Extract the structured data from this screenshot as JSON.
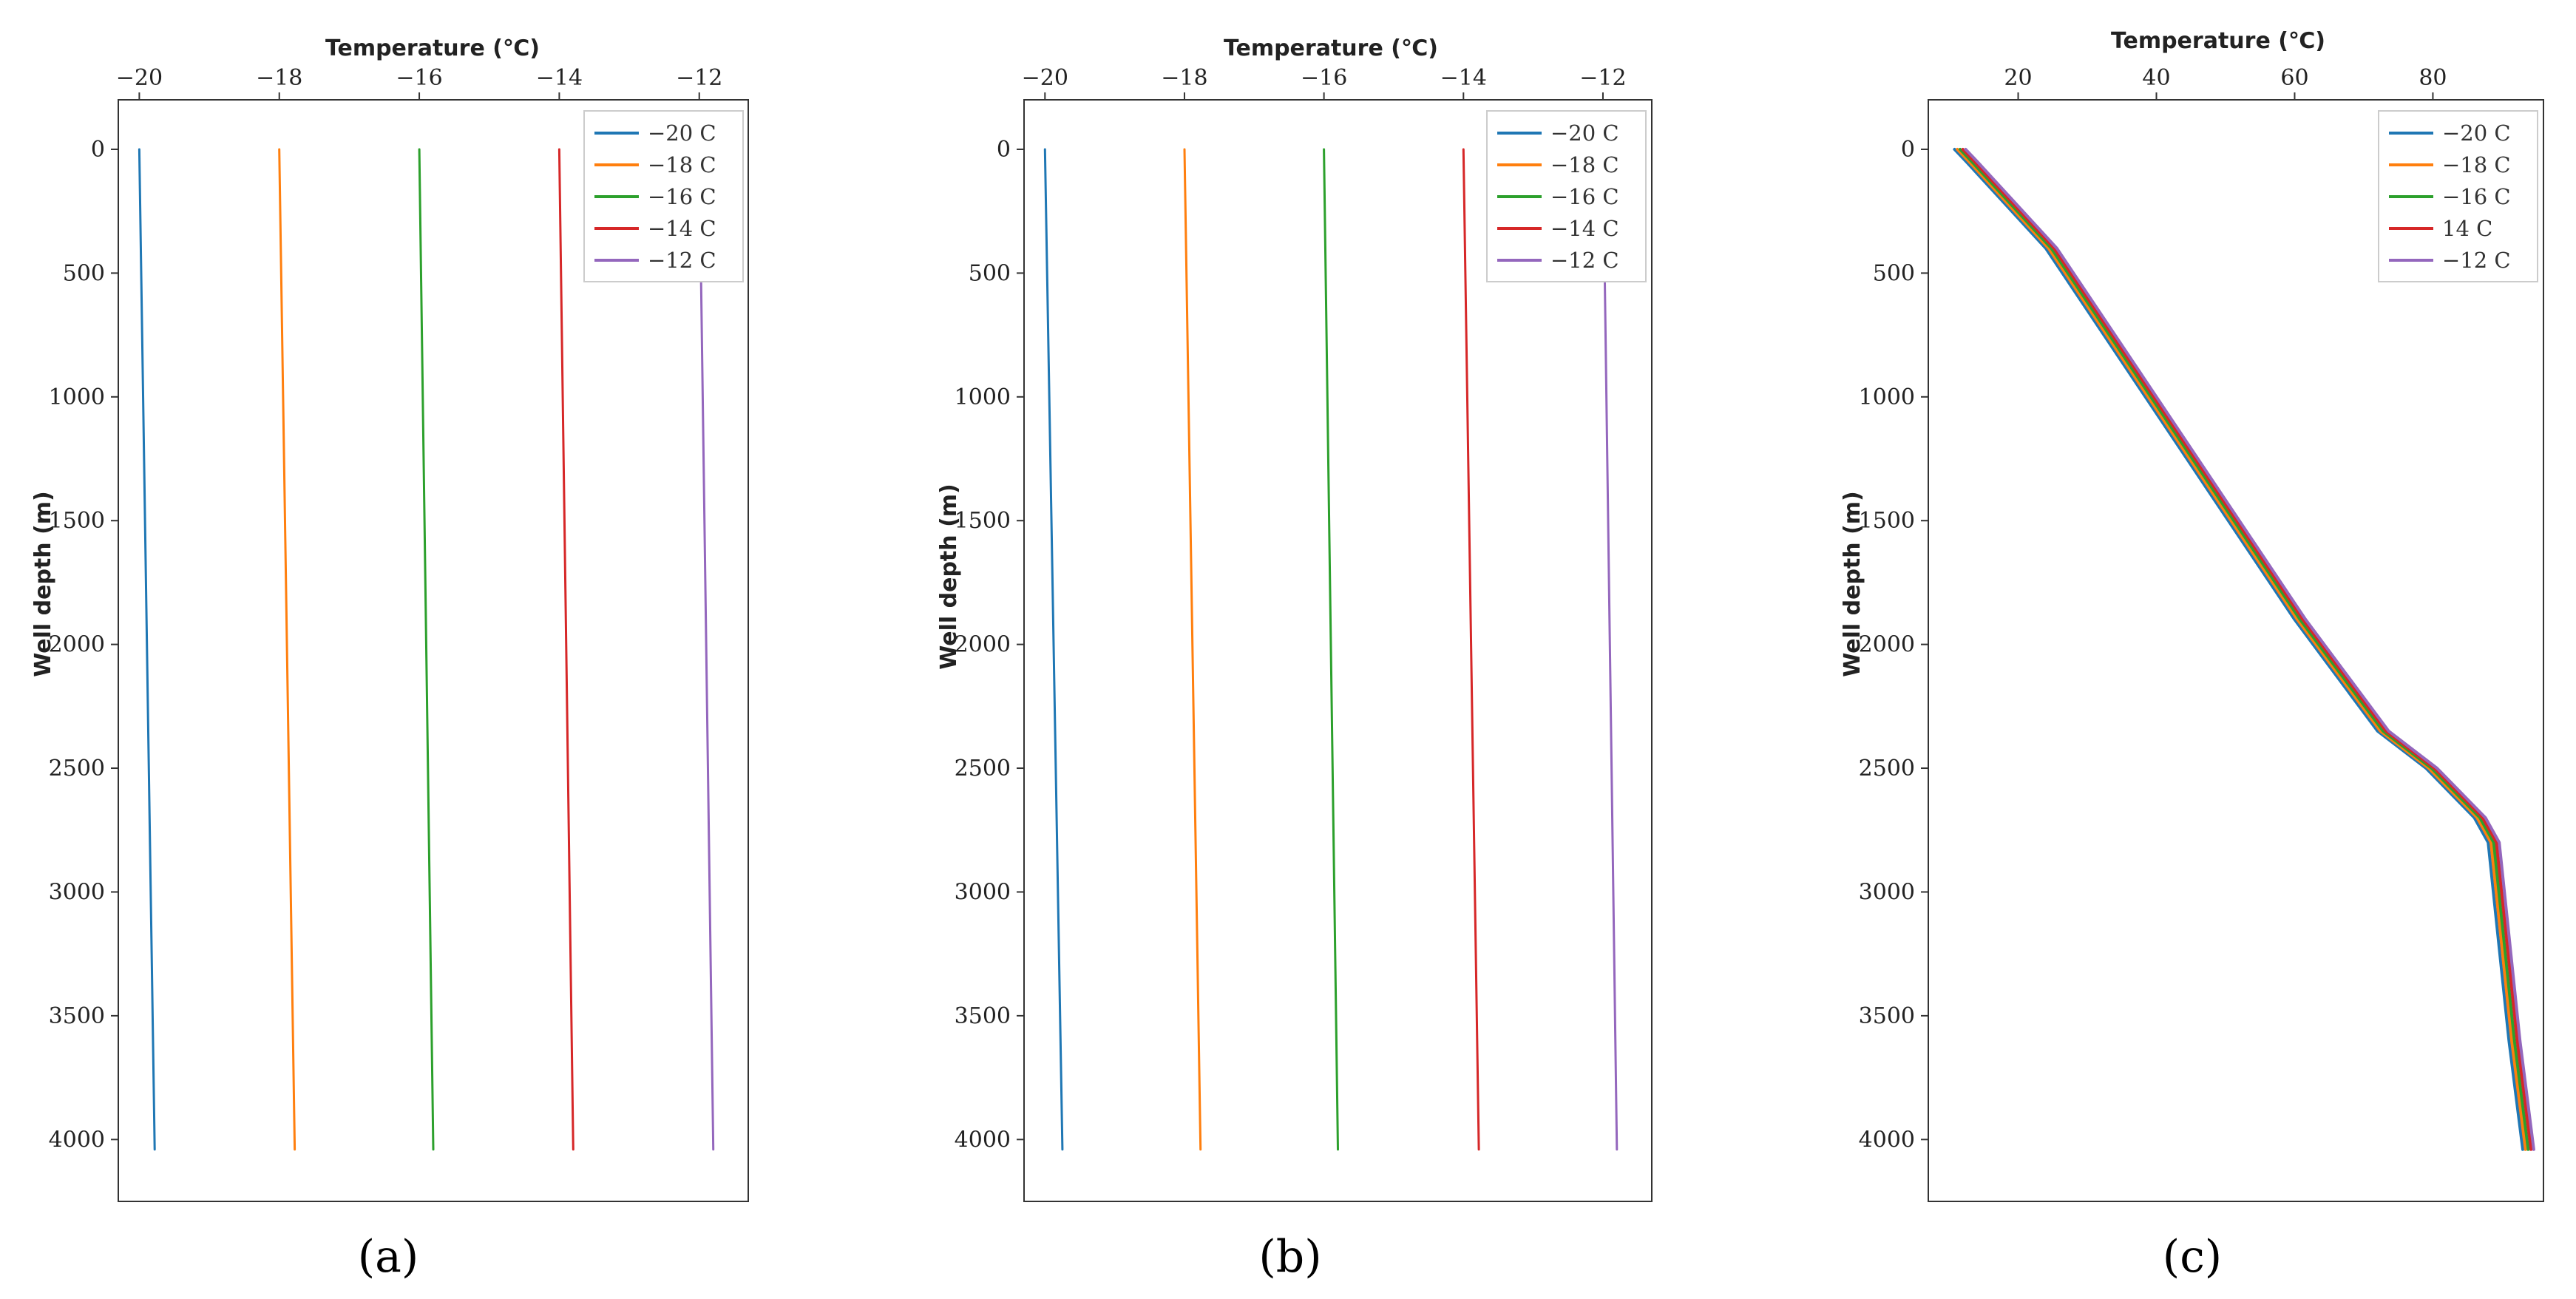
{
  "colors": [
    "#1f77b4",
    "#ff7f0e",
    "#2ca02c",
    "#d62728",
    "#9467bd"
  ],
  "chart_data": [
    {
      "type": "line",
      "caption": "(a)",
      "xlabel": "Temperature (℃)",
      "ylabel": "Well depth (m)",
      "xlim": [
        -20.3,
        -11.3
      ],
      "ylim": [
        4250,
        -200
      ],
      "xticks": [
        -20,
        -18,
        -16,
        -14,
        -12
      ],
      "xtick_labels": [
        "−20",
        "−18",
        "−16",
        "−14",
        "−12"
      ],
      "yticks": [
        0,
        500,
        1000,
        1500,
        2000,
        2500,
        3000,
        3500,
        4000
      ],
      "legend_position": "top-right",
      "series": [
        {
          "name": "−20  C",
          "points": [
            [
              -20.0,
              0
            ],
            [
              -19.78,
              4040
            ]
          ]
        },
        {
          "name": "−18  C",
          "points": [
            [
              -18.0,
              0
            ],
            [
              -17.78,
              4040
            ]
          ]
        },
        {
          "name": "−16  C",
          "points": [
            [
              -16.0,
              0
            ],
            [
              -15.8,
              4040
            ]
          ]
        },
        {
          "name": "−14  C",
          "points": [
            [
              -14.0,
              0
            ],
            [
              -13.8,
              4040
            ]
          ]
        },
        {
          "name": "−12  C",
          "points": [
            [
              -12.0,
              0
            ],
            [
              -11.8,
              4040
            ]
          ]
        }
      ]
    },
    {
      "type": "line",
      "caption": "(b)",
      "xlabel": "Temperature (℃)",
      "ylabel": "Well depth (m)",
      "xlim": [
        -20.3,
        -11.3
      ],
      "ylim": [
        4250,
        -200
      ],
      "xticks": [
        -20,
        -18,
        -16,
        -14,
        -12
      ],
      "xtick_labels": [
        "−20",
        "−18",
        "−16",
        "−14",
        "−12"
      ],
      "yticks": [
        0,
        500,
        1000,
        1500,
        2000,
        2500,
        3000,
        3500,
        4000
      ],
      "legend_position": "top-right",
      "series": [
        {
          "name": "−20  C",
          "points": [
            [
              -20.0,
              0
            ],
            [
              -19.75,
              4040
            ]
          ]
        },
        {
          "name": "−18  C",
          "points": [
            [
              -18.0,
              0
            ],
            [
              -17.77,
              4040
            ]
          ]
        },
        {
          "name": "−16  C",
          "points": [
            [
              -16.0,
              0
            ],
            [
              -15.8,
              4040
            ]
          ]
        },
        {
          "name": "−14  C",
          "points": [
            [
              -14.0,
              0
            ],
            [
              -13.78,
              4040
            ]
          ]
        },
        {
          "name": "−12  C",
          "points": [
            [
              -12.0,
              0
            ],
            [
              -11.8,
              4040
            ]
          ]
        }
      ]
    },
    {
      "type": "line",
      "caption": "(c)",
      "xlabel": "Temperature (℃)",
      "ylabel": "Well depth (m)",
      "xlim": [
        7,
        96
      ],
      "ylim": [
        4250,
        -200
      ],
      "xticks": [
        20,
        40,
        60,
        80
      ],
      "xtick_labels": [
        "20",
        "40",
        "60",
        "80"
      ],
      "yticks": [
        0,
        500,
        1000,
        1500,
        2000,
        2500,
        3000,
        3500,
        4000
      ],
      "legend_position": "top-right",
      "series": [
        {
          "name": "−20  C",
          "points": [
            [
              10.8,
              0
            ],
            [
              12.5,
              50
            ],
            [
              24,
              400
            ],
            [
              36,
              900
            ],
            [
              48,
              1400
            ],
            [
              60,
              1900
            ],
            [
              72,
              2350
            ],
            [
              79,
              2500
            ],
            [
              86,
              2700
            ],
            [
              88,
              2800
            ],
            [
              89.5,
              3200
            ],
            [
              91,
              3600
            ],
            [
              93,
              4040
            ]
          ]
        },
        {
          "name": "−18  C",
          "points": [
            [
              11.2,
              0
            ],
            [
              12.9,
              50
            ],
            [
              24.4,
              400
            ],
            [
              36.4,
              900
            ],
            [
              48.4,
              1400
            ],
            [
              60.4,
              1900
            ],
            [
              72.4,
              2350
            ],
            [
              79.4,
              2500
            ],
            [
              86.4,
              2700
            ],
            [
              88.4,
              2800
            ],
            [
              89.9,
              3200
            ],
            [
              91.4,
              3600
            ],
            [
              93.4,
              4040
            ]
          ]
        },
        {
          "name": "−16  C",
          "points": [
            [
              11.6,
              0
            ],
            [
              13.3,
              50
            ],
            [
              24.8,
              400
            ],
            [
              36.8,
              900
            ],
            [
              48.8,
              1400
            ],
            [
              60.8,
              1900
            ],
            [
              72.8,
              2350
            ],
            [
              79.8,
              2500
            ],
            [
              86.8,
              2700
            ],
            [
              88.8,
              2800
            ],
            [
              90.3,
              3200
            ],
            [
              91.8,
              3600
            ],
            [
              93.8,
              4040
            ]
          ]
        },
        {
          "name": "14  C",
          "points": [
            [
              12.0,
              0
            ],
            [
              13.7,
              50
            ],
            [
              25.2,
              400
            ],
            [
              37.2,
              900
            ],
            [
              49.2,
              1400
            ],
            [
              61.2,
              1900
            ],
            [
              73.2,
              2350
            ],
            [
              80.2,
              2500
            ],
            [
              87.2,
              2700
            ],
            [
              89.2,
              2800
            ],
            [
              90.7,
              3200
            ],
            [
              92.2,
              3600
            ],
            [
              94.2,
              4040
            ]
          ]
        },
        {
          "name": "−12  C",
          "points": [
            [
              12.4,
              0
            ],
            [
              14.1,
              50
            ],
            [
              25.6,
              400
            ],
            [
              37.6,
              900
            ],
            [
              49.6,
              1400
            ],
            [
              61.6,
              1900
            ],
            [
              73.6,
              2350
            ],
            [
              80.6,
              2500
            ],
            [
              87.6,
              2700
            ],
            [
              89.6,
              2800
            ],
            [
              91.1,
              3200
            ],
            [
              92.6,
              3600
            ],
            [
              94.6,
              4040
            ]
          ]
        }
      ]
    }
  ]
}
